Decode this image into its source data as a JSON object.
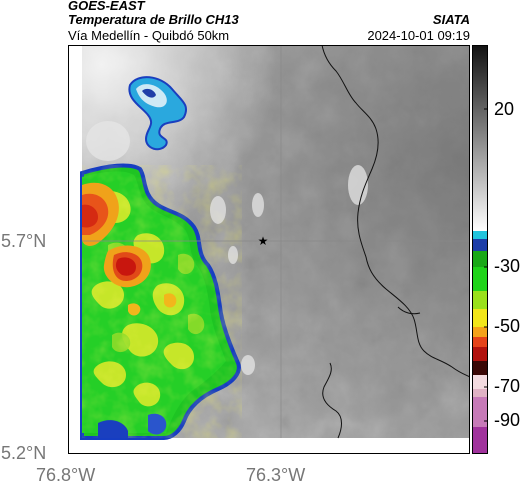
{
  "header": {
    "satellite": "GOES-EAST",
    "product": "Temperatura de Brillo CH13",
    "organization": "SIATA",
    "region": "Vía Medellín - Quibdó 50km",
    "timestamp": "2024-10-01 09:19"
  },
  "axes": {
    "lat_ticks": [
      "5.7°N",
      "5.2°N"
    ],
    "lon_ticks": [
      "76.8°W",
      "76.3°W"
    ]
  },
  "colorbar": {
    "ticks": [
      "20",
      "-30",
      "-50",
      "-70",
      "-90"
    ],
    "tick_values": [
      20,
      -30,
      -50,
      -70,
      -90
    ],
    "range": [
      -95,
      45
    ]
  },
  "marker": {
    "icon": "star-icon"
  },
  "colors": {
    "cold_core": "#dd2a10",
    "convective": "#19c21a",
    "edge_blue": "#1a3fbf",
    "cyan_rim": "#28b7e6",
    "background_gray": "#9b9b9b"
  }
}
